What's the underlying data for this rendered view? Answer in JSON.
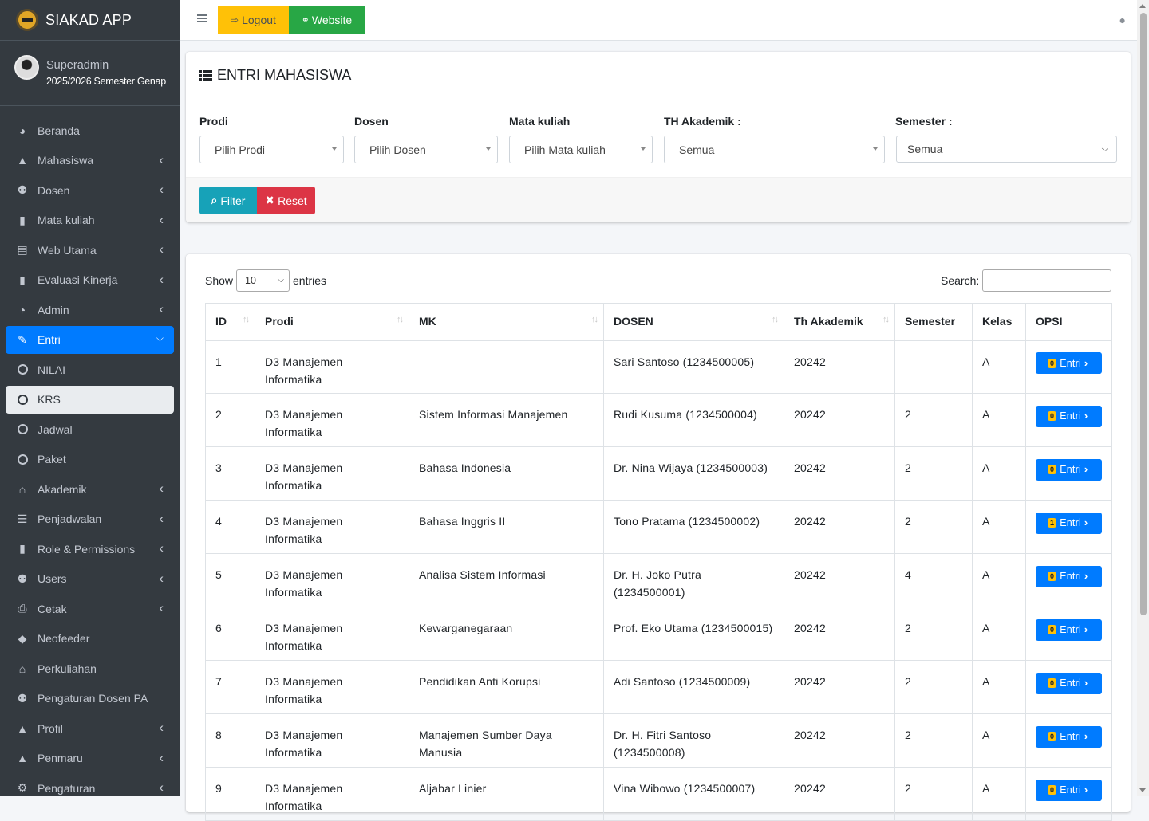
{
  "brand": {
    "title": "SIAKAD APP"
  },
  "user": {
    "name": "Superadmin",
    "semester": "2025/2026 Semester Genap"
  },
  "sidebar": {
    "items": [
      {
        "label": "Beranda",
        "icon": "tachometer-icon",
        "chevron": false
      },
      {
        "label": "Mahasiswa",
        "icon": "user-icon",
        "chevron": true
      },
      {
        "label": "Dosen",
        "icon": "users-icon",
        "chevron": true
      },
      {
        "label": "Mata kuliah",
        "icon": "book-icon",
        "chevron": true
      },
      {
        "label": "Web Utama",
        "icon": "newspaper-icon",
        "chevron": true
      },
      {
        "label": "Evaluasi Kinerja",
        "icon": "book-icon",
        "chevron": true
      },
      {
        "label": "Admin",
        "icon": "pie-chart-icon",
        "chevron": true
      },
      {
        "label": "Entri",
        "icon": "edit-icon",
        "chevron": true,
        "state": "active"
      },
      {
        "label": "NILAI",
        "icon": "circle-icon",
        "chevron": false
      },
      {
        "label": "KRS",
        "icon": "circle-icon",
        "chevron": false,
        "state": "sub-active"
      },
      {
        "label": "Jadwal",
        "icon": "circle-icon",
        "chevron": false
      },
      {
        "label": "Paket",
        "icon": "circle-icon",
        "chevron": false
      },
      {
        "label": "Akademik",
        "icon": "university-icon",
        "chevron": true
      },
      {
        "label": "Penjadwalan",
        "icon": "list-icon",
        "chevron": true
      },
      {
        "label": "Role & Permissions",
        "icon": "book-icon",
        "chevron": true
      },
      {
        "label": "Users",
        "icon": "users-icon",
        "chevron": true
      },
      {
        "label": "Cetak",
        "icon": "print-icon",
        "chevron": true
      },
      {
        "label": "Neofeeder",
        "icon": "graduation-cap-icon",
        "chevron": false
      },
      {
        "label": "Perkuliahan",
        "icon": "university-icon",
        "chevron": false
      },
      {
        "label": "Pengaturan Dosen PA",
        "icon": "users-icon",
        "chevron": false
      },
      {
        "label": "Profil",
        "icon": "user-icon",
        "chevron": true
      },
      {
        "label": "Penmaru",
        "icon": "user-icon",
        "chevron": true
      },
      {
        "label": "Pengaturan",
        "icon": "cogs-icon",
        "chevron": true
      }
    ]
  },
  "topbar": {
    "logout_label": "Logout",
    "website_label": "Website"
  },
  "filter": {
    "title": "ENTRI MAHASISWA",
    "prodi_label": "Prodi",
    "prodi_value": "Pilih Prodi",
    "dosen_label": "Dosen",
    "dosen_value": "Pilih Dosen",
    "mk_label": "Mata kuliah",
    "mk_value": "Pilih Mata kuliah",
    "th_label": "TH Akademik :",
    "th_value": "Semua",
    "semester_label": "Semester :",
    "semester_value": "Semua",
    "filter_label": "Filter",
    "reset_label": "Reset"
  },
  "table": {
    "show_label": "Show",
    "length_value": "10",
    "entries_label": "entries",
    "search_label": "Search:",
    "columns": [
      "ID",
      "Prodi",
      "MK",
      "DOSEN",
      "Th Akademik",
      "Semester",
      "Kelas",
      "OPSI"
    ],
    "rows": [
      {
        "id": "1",
        "prodi": "D3 Manajemen Informatika",
        "mk": "",
        "dosen": "Sari Santoso (1234500005)",
        "th": "20242",
        "semester": "",
        "kelas": "A",
        "count": "0"
      },
      {
        "id": "2",
        "prodi": "D3 Manajemen Informatika",
        "mk": "Sistem Informasi Manajemen",
        "dosen": "Rudi Kusuma (1234500004)",
        "th": "20242",
        "semester": "2",
        "kelas": "A",
        "count": "0"
      },
      {
        "id": "3",
        "prodi": "D3 Manajemen Informatika",
        "mk": "Bahasa Indonesia",
        "dosen": "Dr. Nina Wijaya (1234500003)",
        "th": "20242",
        "semester": "2",
        "kelas": "A",
        "count": "0"
      },
      {
        "id": "4",
        "prodi": "D3 Manajemen Informatika",
        "mk": "Bahasa Inggris II",
        "dosen": "Tono Pratama (1234500002)",
        "th": "20242",
        "semester": "2",
        "kelas": "A",
        "count": "1"
      },
      {
        "id": "5",
        "prodi": "D3 Manajemen Informatika",
        "mk": "Analisa Sistem Informasi",
        "dosen": "Dr. H. Joko Putra (1234500001)",
        "th": "20242",
        "semester": "4",
        "kelas": "A",
        "count": "0"
      },
      {
        "id": "6",
        "prodi": "D3 Manajemen Informatika",
        "mk": "Kewarganegaraan",
        "dosen": "Prof. Eko Utama (1234500015)",
        "th": "20242",
        "semester": "2",
        "kelas": "A",
        "count": "0"
      },
      {
        "id": "7",
        "prodi": "D3 Manajemen Informatika",
        "mk": "Pendidikan Anti Korupsi",
        "dosen": "Adi Santoso (1234500009)",
        "th": "20242",
        "semester": "2",
        "kelas": "A",
        "count": "0"
      },
      {
        "id": "8",
        "prodi": "D3 Manajemen Informatika",
        "mk": "Manajemen Sumber Daya Manusia",
        "dosen": "Dr. H. Fitri Santoso (1234500008)",
        "th": "20242",
        "semester": "2",
        "kelas": "A",
        "count": "0"
      },
      {
        "id": "9",
        "prodi": "D3 Manajemen Informatika",
        "mk": "Aljabar Linier",
        "dosen": "Vina Wibowo (1234500007)",
        "th": "20242",
        "semester": "2",
        "kelas": "A",
        "count": "0"
      }
    ],
    "entri_label": "Entri"
  }
}
